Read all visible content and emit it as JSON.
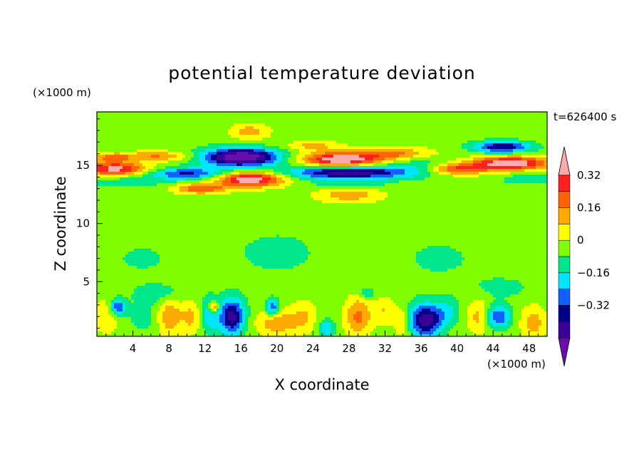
{
  "chart_data": {
    "type": "heatmap",
    "title": "potential temperature deviation",
    "xlabel": "X coordinate",
    "ylabel": "Z coordinate",
    "x_unit_label": "(×1000 m)",
    "y_unit_label": "(×1000 m)",
    "time_label": "t=626400 s",
    "xlim": [
      0,
      50
    ],
    "ylim": [
      0.3,
      19.6
    ],
    "x_ticks": [
      4,
      8,
      12,
      16,
      20,
      24,
      28,
      32,
      36,
      40,
      44,
      48
    ],
    "y_ticks": [
      5,
      10,
      15
    ],
    "colorbar": {
      "levels": [
        -0.48,
        -0.4,
        -0.32,
        -0.24,
        -0.16,
        -0.08,
        0,
        0.08,
        0.16,
        0.24,
        0.32,
        0.4
      ],
      "tick_labels": [
        "0.32",
        "0.16",
        "0",
        "−0.16",
        "−0.32"
      ],
      "tick_values": [
        0.32,
        0.16,
        0,
        -0.16,
        -0.32
      ],
      "colors": [
        "#6a0dad",
        "#3a0099",
        "#00008b",
        "#1060ff",
        "#00e5ff",
        "#00e68a",
        "#80ff00",
        "#ffff00",
        "#ffaa00",
        "#ff6600",
        "#ff2020",
        "#ffaaaa"
      ]
    },
    "background_level": 0.04,
    "features": [
      {
        "x": 16,
        "z": 15.7,
        "sx": 3.0,
        "sz": 0.55,
        "a": -0.55
      },
      {
        "x": 10,
        "z": 14.3,
        "sx": 3.0,
        "sz": 0.35,
        "a": -0.3
      },
      {
        "x": 17,
        "z": 13.8,
        "sx": 2.6,
        "sz": 0.45,
        "a": 0.45
      },
      {
        "x": 11.5,
        "z": 13.0,
        "sx": 2.0,
        "sz": 0.3,
        "a": 0.28
      },
      {
        "x": 27,
        "z": 15.5,
        "sx": 3.0,
        "sz": 0.45,
        "a": 0.45
      },
      {
        "x": 28,
        "z": 14.4,
        "sx": 4.5,
        "sz": 0.4,
        "a": -0.44
      },
      {
        "x": 2,
        "z": 14.7,
        "sx": 2.5,
        "sz": 0.4,
        "a": 0.4
      },
      {
        "x": 1.5,
        "z": 15.7,
        "sx": 2.0,
        "sz": 0.3,
        "a": 0.2
      },
      {
        "x": 7,
        "z": 15.8,
        "sx": 2.5,
        "sz": 0.3,
        "a": 0.2
      },
      {
        "x": 46,
        "z": 15.2,
        "sx": 3.0,
        "sz": 0.4,
        "a": 0.46
      },
      {
        "x": 45,
        "z": 16.6,
        "sx": 2.2,
        "sz": 0.35,
        "a": -0.36
      },
      {
        "x": 40,
        "z": 14.7,
        "sx": 2.5,
        "sz": 0.35,
        "a": 0.3
      },
      {
        "x": 48,
        "z": 13.8,
        "sx": 2.0,
        "sz": 0.3,
        "a": -0.12
      },
      {
        "x": 33,
        "z": 16.0,
        "sx": 3.0,
        "sz": 0.4,
        "a": 0.22
      },
      {
        "x": 24,
        "z": 16.7,
        "sx": 2.0,
        "sz": 0.3,
        "a": 0.15
      },
      {
        "x": 17,
        "z": 17.9,
        "sx": 1.5,
        "sz": 0.5,
        "a": 0.16
      },
      {
        "x": 28,
        "z": 12.5,
        "sx": 2.5,
        "sz": 0.5,
        "a": 0.18
      },
      {
        "x": 28,
        "z": 13.3,
        "sx": 3.0,
        "sz": 0.3,
        "a": -0.1
      },
      {
        "x": 3.5,
        "z": 13.6,
        "sx": 3.0,
        "sz": 0.35,
        "a": -0.1
      },
      {
        "x": 36,
        "z": 15.0,
        "sx": 2.5,
        "sz": 0.6,
        "a": -0.12
      },
      {
        "x": 15,
        "z": 2.0,
        "sx": 1.0,
        "sz": 1.1,
        "a": -0.4
      },
      {
        "x": 12.5,
        "z": 2.2,
        "sx": 0.7,
        "sz": 1.0,
        "a": -0.2
      },
      {
        "x": 13,
        "z": 2.8,
        "sx": 0.4,
        "sz": 0.35,
        "a": 0.32
      },
      {
        "x": 8,
        "z": 2.0,
        "sx": 1.0,
        "sz": 1.2,
        "a": 0.2
      },
      {
        "x": 10.5,
        "z": 2.0,
        "sx": 0.8,
        "sz": 1.0,
        "a": 0.14
      },
      {
        "x": 2.3,
        "z": 2.8,
        "sx": 0.6,
        "sz": 0.5,
        "a": -0.3
      },
      {
        "x": 1.0,
        "z": 2.0,
        "sx": 1.0,
        "sz": 1.0,
        "a": 0.12
      },
      {
        "x": 5.5,
        "z": 2.0,
        "sx": 1.5,
        "sz": 1.0,
        "a": -0.08
      },
      {
        "x": 20,
        "z": 1.5,
        "sx": 1.6,
        "sz": 0.8,
        "a": 0.18
      },
      {
        "x": 19.5,
        "z": 2.8,
        "sx": 0.5,
        "sz": 0.5,
        "a": -0.3
      },
      {
        "x": 23,
        "z": 2.0,
        "sx": 1.0,
        "sz": 1.0,
        "a": 0.12
      },
      {
        "x": 25.5,
        "z": 1.0,
        "sx": 0.6,
        "sz": 0.5,
        "a": -0.2
      },
      {
        "x": 29,
        "z": 2.0,
        "sx": 1.0,
        "sz": 1.2,
        "a": 0.22
      },
      {
        "x": 32,
        "z": 2.5,
        "sx": 1.0,
        "sz": 0.8,
        "a": 0.12
      },
      {
        "x": 36.5,
        "z": 1.7,
        "sx": 1.3,
        "sz": 1.0,
        "a": -0.42
      },
      {
        "x": 39,
        "z": 2.5,
        "sx": 1.0,
        "sz": 0.8,
        "a": -0.12
      },
      {
        "x": 34,
        "z": 1.5,
        "sx": 0.6,
        "sz": 0.8,
        "a": 0.16
      },
      {
        "x": 44.5,
        "z": 2.0,
        "sx": 1.0,
        "sz": 0.7,
        "a": -0.3
      },
      {
        "x": 42.5,
        "z": 2.0,
        "sx": 1.0,
        "sz": 1.0,
        "a": 0.16
      },
      {
        "x": 48.5,
        "z": 1.5,
        "sx": 1.0,
        "sz": 1.0,
        "a": 0.16
      },
      {
        "x": 30,
        "z": 4.0,
        "sx": 0.6,
        "sz": 0.3,
        "a": -0.14
      },
      {
        "x": 7,
        "z": 4.0,
        "sx": 2.0,
        "sz": 0.6,
        "a": -0.1
      },
      {
        "x": 45,
        "z": 4.5,
        "sx": 2.0,
        "sz": 0.6,
        "a": -0.08
      },
      {
        "x": 20,
        "z": 7.5,
        "sx": 4.0,
        "sz": 1.6,
        "a": -0.06
      },
      {
        "x": 38,
        "z": 7.0,
        "sx": 4.0,
        "sz": 1.6,
        "a": -0.05
      },
      {
        "x": 5,
        "z": 7.0,
        "sx": 3.0,
        "sz": 1.2,
        "a": -0.05
      }
    ]
  }
}
